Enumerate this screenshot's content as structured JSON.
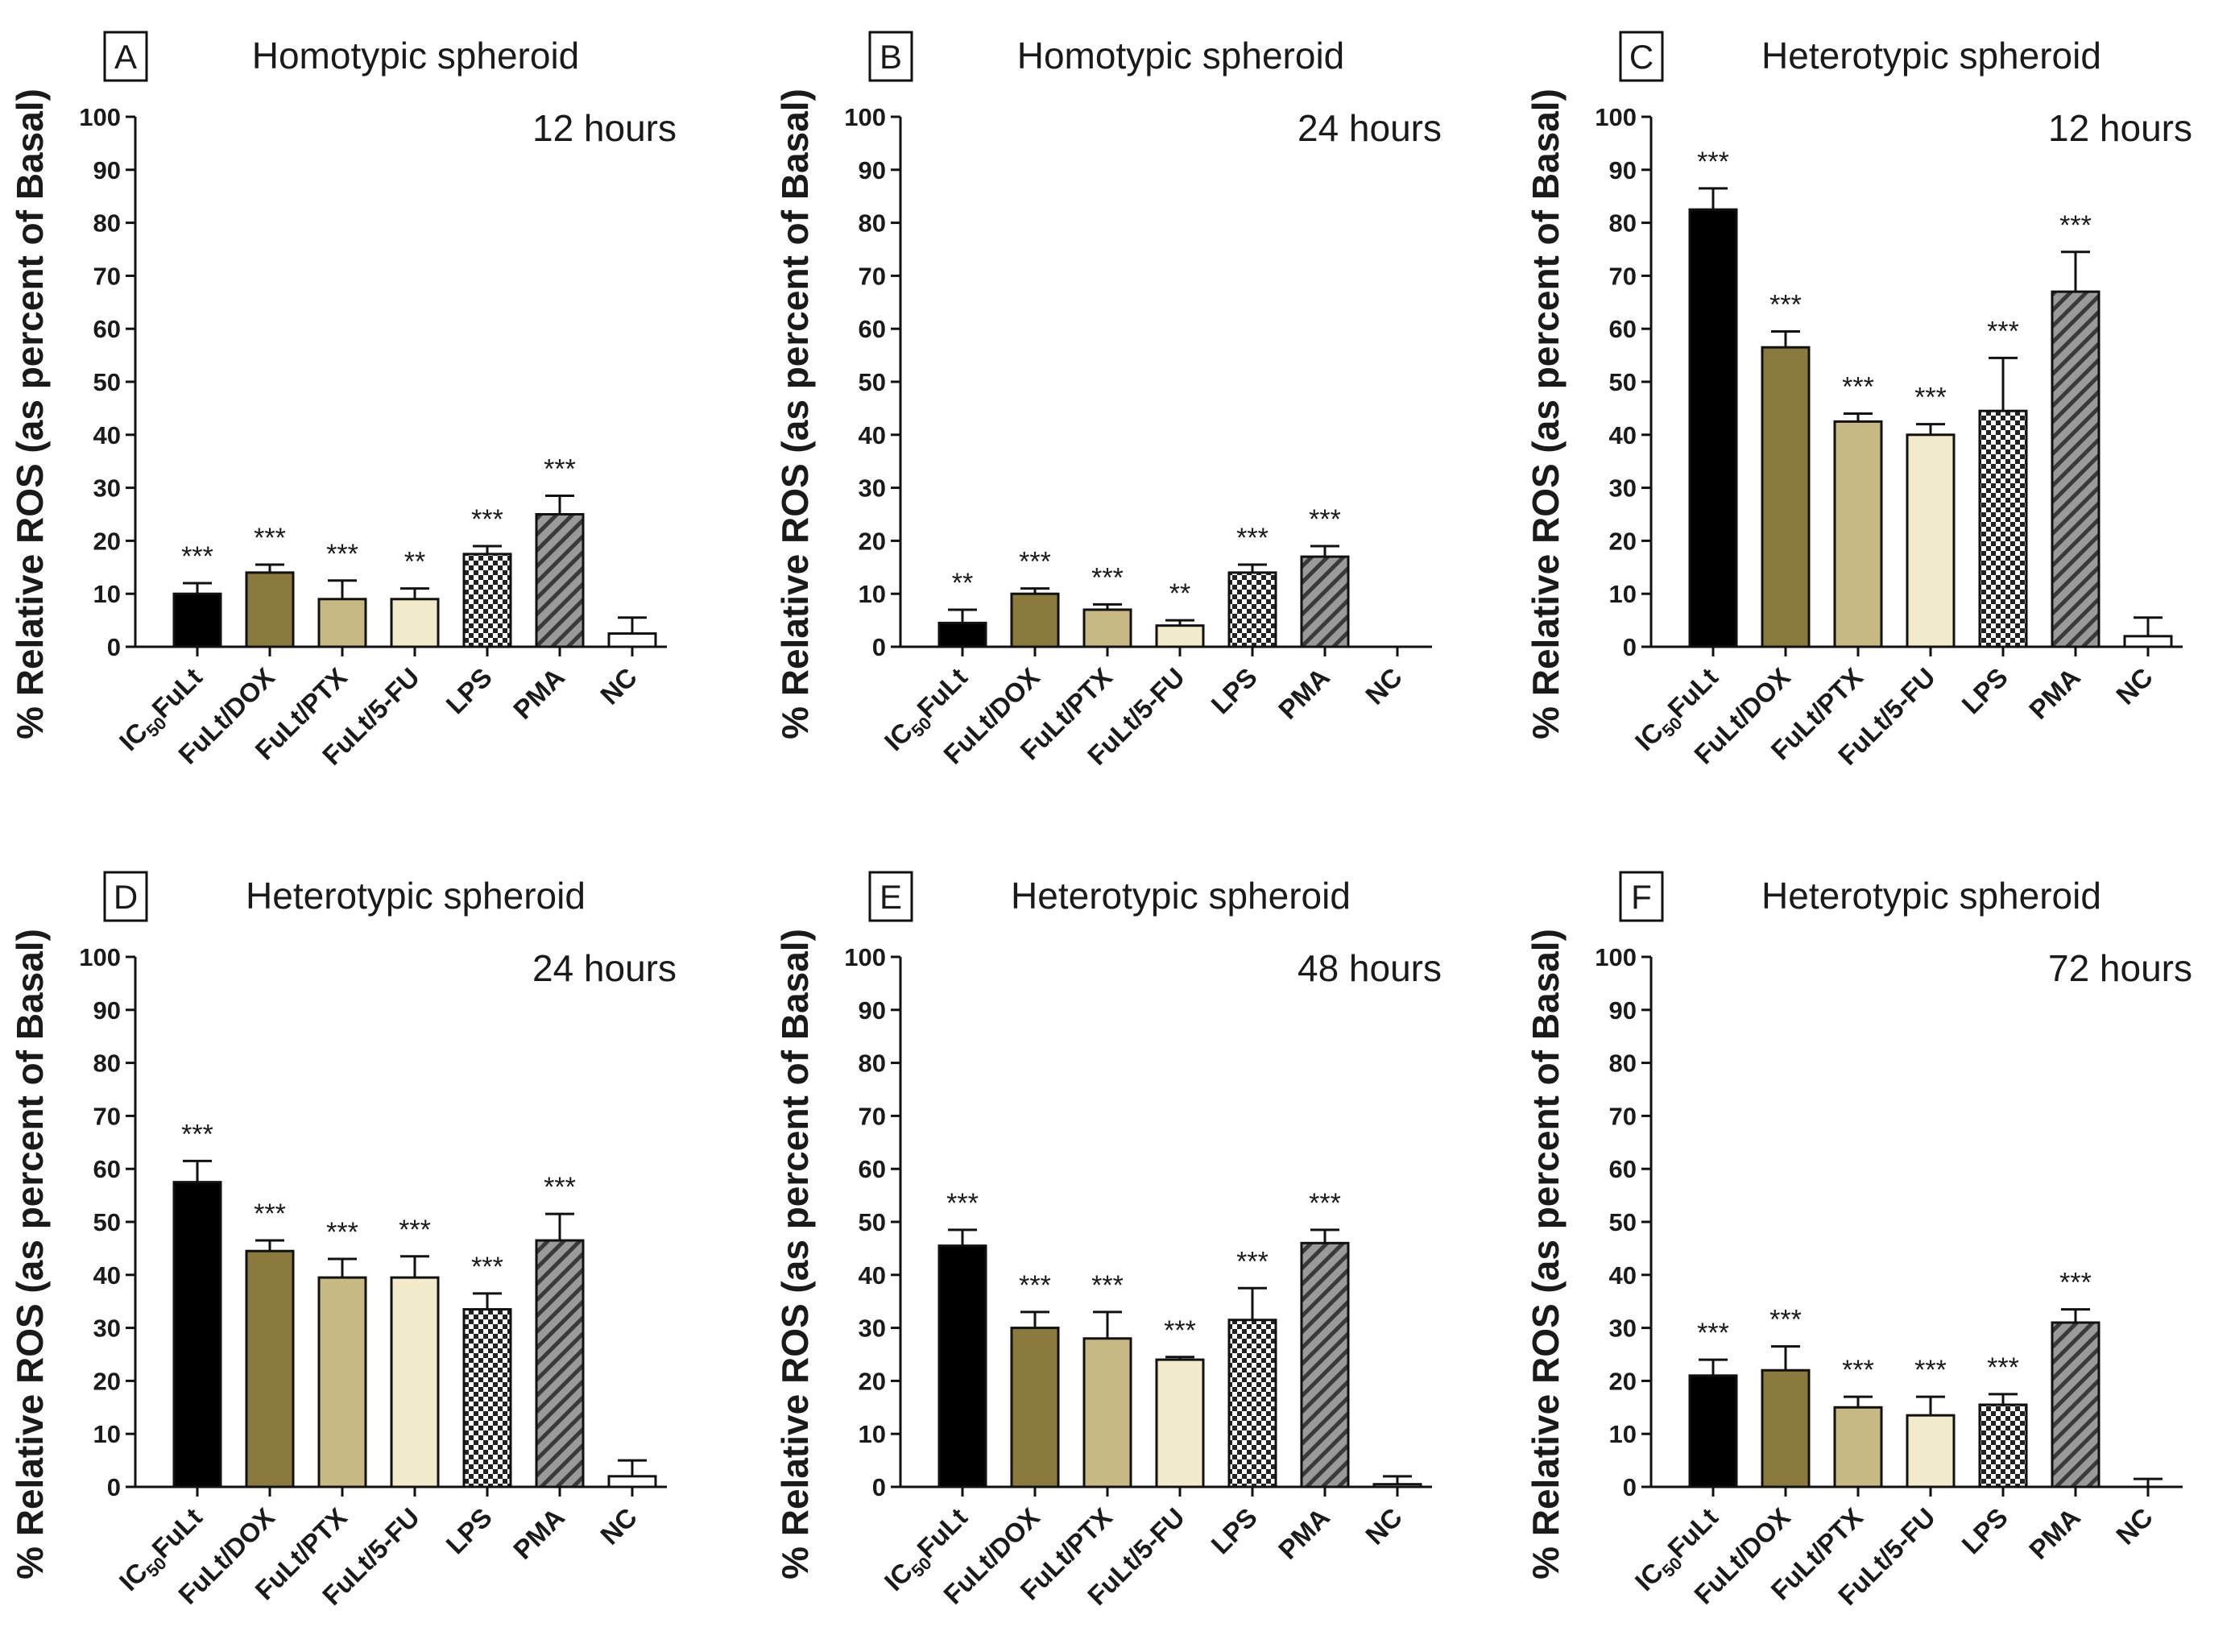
{
  "colors": {
    "IC50FuLt": "#000000",
    "FuLt/DOX": "#8b7a3e",
    "FuLt/PTX": "#c6b984",
    "FuLt/5-FU": "#f1ebcb",
    "LPS": "checkerboard-pattern",
    "PMA": "diagonal-hatch-gray",
    "NC": "#ffffff"
  },
  "x_tick_labels": [
    {
      "main": "IC",
      "sub": "50",
      "rest": "FuLt"
    },
    {
      "main": "FuLt/DOX",
      "sub": "",
      "rest": ""
    },
    {
      "main": "FuLt/PTX",
      "sub": "",
      "rest": ""
    },
    {
      "main": "FuLt/5-FU",
      "sub": "",
      "rest": ""
    },
    {
      "main": "LPS",
      "sub": "",
      "rest": ""
    },
    {
      "main": "PMA",
      "sub": "",
      "rest": ""
    },
    {
      "main": "NC",
      "sub": "",
      "rest": ""
    }
  ],
  "y_ticks": [
    "0",
    "10",
    "20",
    "30",
    "40",
    "50",
    "60",
    "70",
    "80",
    "90",
    "100"
  ],
  "chart_data": [
    {
      "panel": "A",
      "type": "bar",
      "title": "Homotypic spheroid",
      "subtitle": "12 hours",
      "ylabel": "% Relative ROS  (as percent of Basal)",
      "ylim": [
        0,
        100
      ],
      "categories": [
        "IC50FuLt",
        "FuLt/DOX",
        "FuLt/PTX",
        "FuLt/5-FU",
        "LPS",
        "PMA",
        "NC"
      ],
      "values": [
        10,
        14,
        9,
        9,
        17.5,
        25,
        2.5
      ],
      "errors": [
        2,
        1.5,
        3.5,
        2,
        1.5,
        3.5,
        3
      ],
      "annotations": [
        "***",
        "***",
        "***",
        "**",
        "***",
        "***",
        ""
      ]
    },
    {
      "panel": "B",
      "type": "bar",
      "title": "Homotypic spheroid",
      "subtitle": "24 hours",
      "ylabel": "% Relative ROS  (as percent of Basal)",
      "ylim": [
        0,
        100
      ],
      "categories": [
        "IC50FuLt",
        "FuLt/DOX",
        "FuLt/PTX",
        "FuLt/5-FU",
        "LPS",
        "PMA",
        "NC"
      ],
      "values": [
        4.5,
        10,
        7,
        4,
        14,
        17,
        0
      ],
      "errors": [
        2.5,
        1,
        1,
        1,
        1.5,
        2,
        0
      ],
      "annotations": [
        "**",
        "***",
        "***",
        "**",
        "***",
        "***",
        ""
      ]
    },
    {
      "panel": "C",
      "type": "bar",
      "title": "Heterotypic spheroid",
      "subtitle": "12 hours",
      "ylabel": "% Relative ROS  (as percent of Basal)",
      "ylim": [
        0,
        100
      ],
      "categories": [
        "IC50FuLt",
        "FuLt/DOX",
        "FuLt/PTX",
        "FuLt/5-FU",
        "LPS",
        "PMA",
        "NC"
      ],
      "values": [
        82.5,
        56.5,
        42.5,
        40,
        44.5,
        67,
        2
      ],
      "errors": [
        4,
        3,
        1.5,
        2,
        10,
        7.5,
        3.5
      ],
      "annotations": [
        "***",
        "***",
        "***",
        "***",
        "***",
        "***",
        ""
      ]
    },
    {
      "panel": "D",
      "type": "bar",
      "title": "Heterotypic spheroid",
      "subtitle": "24 hours",
      "ylabel": "% Relative ROS  (as percent of Basal)",
      "ylim": [
        0,
        100
      ],
      "categories": [
        "IC50FuLt",
        "FuLt/DOX",
        "FuLt/PTX",
        "FuLt/5-FU",
        "LPS",
        "PMA",
        "NC"
      ],
      "values": [
        57.5,
        44.5,
        39.5,
        39.5,
        33.5,
        46.5,
        2
      ],
      "errors": [
        4,
        2,
        3.5,
        4,
        3,
        5,
        3
      ],
      "annotations": [
        "***",
        "***",
        "***",
        "***",
        "***",
        "***",
        ""
      ]
    },
    {
      "panel": "E",
      "type": "bar",
      "title": "Heterotypic spheroid",
      "subtitle": "48 hours",
      "ylabel": "% Relative ROS  (as percent of Basal)",
      "ylim": [
        0,
        100
      ],
      "categories": [
        "IC50FuLt",
        "FuLt/DOX",
        "FuLt/PTX",
        "FuLt/5-FU",
        "LPS",
        "PMA",
        "NC"
      ],
      "values": [
        45.5,
        30,
        28,
        24,
        31.5,
        46,
        0.5
      ],
      "errors": [
        3,
        3,
        5,
        0.5,
        6,
        2.5,
        1.5
      ],
      "annotations": [
        "***",
        "***",
        "***",
        "***",
        "***",
        "***",
        ""
      ]
    },
    {
      "panel": "F",
      "type": "bar",
      "title": "Heterotypic spheroid",
      "subtitle": "72 hours",
      "ylabel": "% Relative ROS  (as percent of Basal)",
      "ylim": [
        0,
        100
      ],
      "categories": [
        "IC50FuLt",
        "FuLt/DOX",
        "FuLt/PTX",
        "FuLt/5-FU",
        "LPS",
        "PMA",
        "NC"
      ],
      "values": [
        21,
        22,
        15,
        13.5,
        15.5,
        31,
        0
      ],
      "errors": [
        3,
        4.5,
        2,
        3.5,
        2,
        2.5,
        1.5
      ],
      "annotations": [
        "***",
        "***",
        "***",
        "***",
        "***",
        "***",
        ""
      ]
    }
  ]
}
